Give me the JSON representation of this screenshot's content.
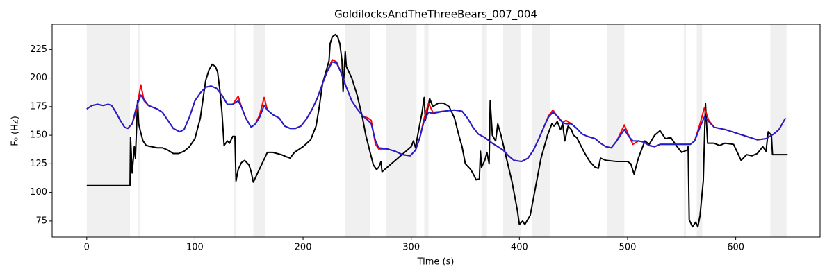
{
  "chart_data": {
    "type": "line",
    "title": "GoldilocksAndTheThreeBears_007_004",
    "xlabel": "Time (s)",
    "ylabel": "F₀ (Hz)",
    "xlim": [
      -32,
      678
    ],
    "ylim": [
      61,
      247
    ],
    "xticks": [
      0,
      100,
      200,
      300,
      400,
      500,
      600
    ],
    "yticks": [
      75,
      100,
      125,
      150,
      175,
      200,
      225
    ],
    "span_color": "#f0f0f0",
    "spans": [
      [
        0,
        40
      ],
      [
        47.6,
        49.5
      ],
      [
        136,
        138
      ],
      [
        154,
        165
      ],
      [
        239,
        262
      ],
      [
        277,
        305
      ],
      [
        312,
        316
      ],
      [
        365,
        370
      ],
      [
        385,
        401
      ],
      [
        412,
        428
      ],
      [
        481,
        497
      ],
      [
        552,
        554
      ],
      [
        564,
        569
      ],
      [
        632,
        647
      ]
    ],
    "series": [
      {
        "color": "#000000",
        "x": [
          0,
          40,
          40.5,
          42,
          44,
          45,
          47,
          48,
          50,
          52,
          55,
          60,
          65,
          70,
          75,
          80,
          85,
          90,
          95,
          100,
          105,
          108,
          110,
          113,
          116,
          119,
          121,
          123,
          125,
          127,
          130,
          132,
          135,
          137,
          138,
          140,
          143,
          146,
          150,
          152,
          154,
          167,
          172,
          180,
          185,
          188,
          192,
          200,
          207,
          212,
          215,
          218,
          221,
          224,
          225,
          227,
          230,
          232,
          234,
          236,
          237,
          238,
          239,
          240,
          245,
          250,
          255,
          258,
          262,
          265,
          268,
          270,
          272,
          273,
          300,
          302,
          304,
          306,
          310,
          312,
          313,
          315,
          317,
          320,
          325,
          330,
          335,
          340,
          344,
          347,
          350,
          355,
          358,
          360,
          363,
          364,
          365,
          368,
          370,
          372,
          373,
          375,
          378,
          380,
          383,
          388,
          393,
          398,
          400,
          403,
          405,
          410,
          415,
          420,
          426,
          430,
          432,
          435,
          438,
          440,
          442,
          445,
          448,
          450,
          453,
          460,
          465,
          470,
          473,
          475,
          480,
          490,
          500,
          503,
          506,
          510,
          516,
          520,
          525,
          530,
          535,
          540,
          545,
          550,
          555,
          556,
          557,
          560,
          563,
          565,
          567,
          570,
          572,
          574,
          580,
          585,
          590,
          598,
          605,
          610,
          615,
          620,
          625,
          628,
          630,
          633,
          634,
          648
        ],
        "values": [
          106,
          106,
          148,
          117,
          140,
          130,
          180,
          160,
          152,
          145,
          141,
          140,
          139,
          139,
          137,
          134,
          134,
          136,
          140,
          147,
          165,
          185,
          198,
          207,
          212,
          210,
          205,
          190,
          170,
          141,
          145,
          143,
          149,
          149,
          110,
          120,
          126,
          128,
          124,
          118,
          109,
          135,
          135,
          133,
          131,
          130,
          135,
          140,
          146,
          158,
          175,
          195,
          205,
          215,
          230,
          236,
          238,
          236,
          230,
          215,
          188,
          205,
          223,
          210,
          200,
          185,
          165,
          150,
          135,
          124,
          120,
          122,
          127,
          118,
          140,
          145,
          139,
          150,
          170,
          183,
          163,
          172,
          182,
          175,
          178,
          178,
          175,
          165,
          150,
          140,
          125,
          120,
          115,
          111,
          112,
          136,
          122,
          128,
          135,
          125,
          180,
          150,
          145,
          160,
          150,
          130,
          110,
          85,
          72,
          75,
          72,
          80,
          105,
          130,
          150,
          160,
          158,
          162,
          155,
          160,
          145,
          158,
          155,
          150,
          148,
          135,
          127,
          122,
          121,
          130,
          128,
          127,
          127,
          125,
          116,
          130,
          145,
          142,
          150,
          154,
          147,
          148,
          141,
          135,
          137,
          140,
          76,
          70,
          74,
          70,
          80,
          110,
          178,
          143,
          143,
          141,
          143,
          142,
          128,
          133,
          132,
          134,
          140,
          136,
          153,
          150,
          133,
          133
        ]
      },
      {
        "color": "#ff0000",
        "x": [
          0,
          5,
          10,
          15,
          20,
          23,
          27,
          31,
          35,
          38,
          42,
          46,
          50,
          53,
          57,
          65,
          70,
          75,
          80,
          86,
          90,
          95,
          100,
          105,
          110,
          115,
          120,
          125,
          130,
          135,
          140,
          143,
          147,
          152,
          156,
          160,
          164,
          167,
          172,
          178,
          183,
          188,
          193,
          198,
          203,
          208,
          213,
          218,
          222,
          227,
          231,
          235,
          240,
          245,
          250,
          255,
          260,
          263,
          267,
          270,
          278,
          285,
          292,
          299,
          304,
          308,
          312,
          316,
          320,
          330,
          340,
          347,
          352,
          357,
          362,
          368,
          375,
          380,
          385,
          390,
          395,
          402,
          408,
          413,
          418,
          423,
          427,
          431,
          436,
          440,
          443,
          448,
          453,
          458,
          463,
          470,
          475,
          480,
          485,
          490,
          497,
          501,
          505,
          510,
          515,
          520,
          525,
          530,
          540,
          550,
          558,
          562,
          567,
          571,
          575,
          580,
          590,
          600,
          610,
          620,
          628,
          635,
          640,
          646
        ],
        "values": [
          173,
          176,
          177,
          176,
          177,
          176,
          170,
          163,
          157,
          156,
          160,
          172,
          194,
          180,
          176,
          173,
          170,
          163,
          156,
          153,
          155,
          166,
          180,
          187,
          192,
          193,
          191,
          185,
          177,
          177,
          184,
          175,
          165,
          157,
          160,
          168,
          183,
          172,
          168,
          165,
          158,
          156,
          156,
          158,
          164,
          172,
          182,
          195,
          205,
          216,
          214,
          205,
          192,
          180,
          173,
          167,
          165,
          163,
          142,
          138,
          138,
          136,
          133,
          132,
          137,
          148,
          165,
          178,
          170,
          171,
          172,
          171,
          165,
          157,
          151,
          148,
          143,
          140,
          137,
          132,
          128,
          127,
          130,
          137,
          147,
          158,
          167,
          172,
          165,
          161,
          163,
          160,
          156,
          151,
          149,
          147,
          143,
          140,
          139,
          145,
          159,
          150,
          142,
          145,
          144,
          141,
          140,
          142,
          142,
          142,
          142,
          145,
          160,
          174,
          163,
          157,
          155,
          152,
          149,
          146,
          147,
          151,
          155,
          165
        ]
      },
      {
        "color": "#1f1fd0",
        "x": [
          0,
          5,
          10,
          15,
          20,
          23,
          27,
          31,
          35,
          38,
          42,
          46,
          50,
          53,
          57,
          65,
          70,
          75,
          80,
          86,
          90,
          95,
          100,
          105,
          110,
          115,
          120,
          125,
          130,
          135,
          140,
          143,
          147,
          152,
          156,
          160,
          164,
          167,
          172,
          178,
          183,
          188,
          193,
          198,
          203,
          208,
          213,
          218,
          222,
          227,
          231,
          235,
          240,
          245,
          250,
          255,
          260,
          263,
          267,
          270,
          278,
          285,
          292,
          299,
          304,
          308,
          312,
          316,
          320,
          330,
          340,
          347,
          352,
          357,
          362,
          368,
          375,
          380,
          385,
          390,
          395,
          402,
          408,
          413,
          418,
          423,
          427,
          431,
          436,
          440,
          443,
          448,
          453,
          458,
          463,
          470,
          475,
          480,
          485,
          490,
          497,
          501,
          505,
          510,
          515,
          520,
          525,
          530,
          540,
          550,
          558,
          562,
          567,
          571,
          575,
          580,
          590,
          600,
          610,
          620,
          628,
          635,
          640,
          646
        ],
        "values": [
          173,
          176,
          177,
          176,
          177,
          176,
          170,
          163,
          157,
          156,
          160,
          175,
          185,
          181,
          176,
          173,
          170,
          163,
          156,
          153,
          155,
          166,
          180,
          187,
          192,
          193,
          191,
          185,
          177,
          177,
          180,
          175,
          165,
          157,
          160,
          166,
          176,
          172,
          168,
          165,
          158,
          156,
          156,
          158,
          164,
          172,
          182,
          195,
          205,
          214,
          213,
          205,
          192,
          180,
          173,
          167,
          163,
          160,
          145,
          139,
          138,
          136,
          133,
          132,
          137,
          148,
          163,
          170,
          169,
          171,
          172,
          171,
          165,
          157,
          151,
          148,
          143,
          140,
          137,
          132,
          128,
          127,
          130,
          137,
          147,
          158,
          166,
          170,
          166,
          161,
          160,
          160,
          156,
          151,
          149,
          147,
          143,
          140,
          139,
          145,
          155,
          149,
          145,
          145,
          144,
          141,
          140,
          142,
          142,
          142,
          142,
          145,
          157,
          166,
          162,
          157,
          155,
          152,
          149,
          146,
          147,
          151,
          155,
          165
        ]
      }
    ]
  }
}
